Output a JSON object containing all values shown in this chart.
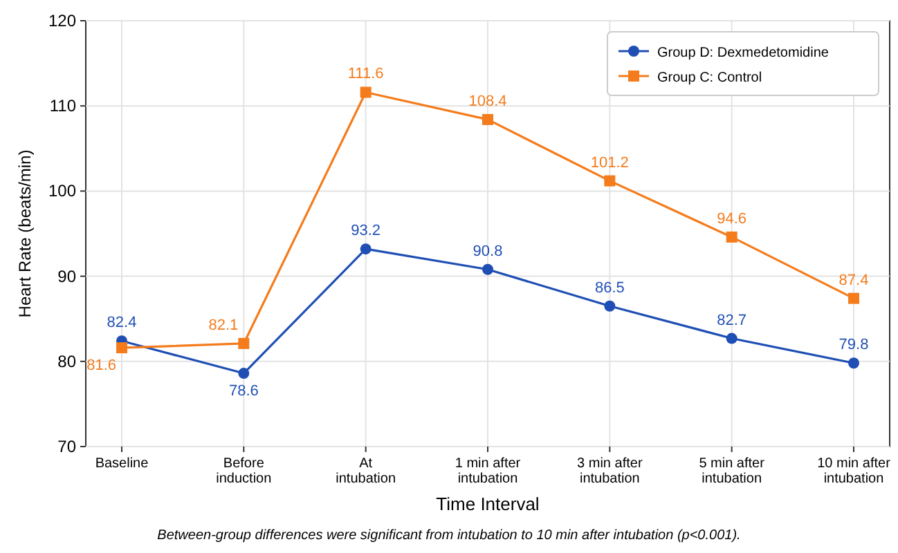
{
  "chart_data": {
    "type": "line",
    "xlabel": "Time Interval",
    "ylabel": "Heart Rate (beats/min)",
    "categories": [
      "Baseline",
      "Before induction",
      "At intubation",
      "1 min after intubation",
      "3 min after intubation",
      "5 min after intubation",
      "10 min after intubation"
    ],
    "series": [
      {
        "name": "Group D: Dexmedetomidine",
        "color": "#1f4fb4",
        "marker": "circle",
        "values": [
          82.4,
          78.6,
          93.2,
          90.8,
          86.5,
          82.7,
          79.8
        ]
      },
      {
        "name": "Group C: Control",
        "color": "#f47c1c",
        "marker": "square",
        "values": [
          81.6,
          82.1,
          111.6,
          108.4,
          101.2,
          94.6,
          87.4
        ]
      }
    ],
    "ylim": [
      70,
      120
    ],
    "yticks": [
      70,
      80,
      90,
      100,
      110,
      120
    ],
    "grid": true,
    "legend": "top right",
    "data_labels": true,
    "annotations": [
      "Between-group differences were significant from intubation to 10 min after intubation (p<0.001)."
    ]
  }
}
